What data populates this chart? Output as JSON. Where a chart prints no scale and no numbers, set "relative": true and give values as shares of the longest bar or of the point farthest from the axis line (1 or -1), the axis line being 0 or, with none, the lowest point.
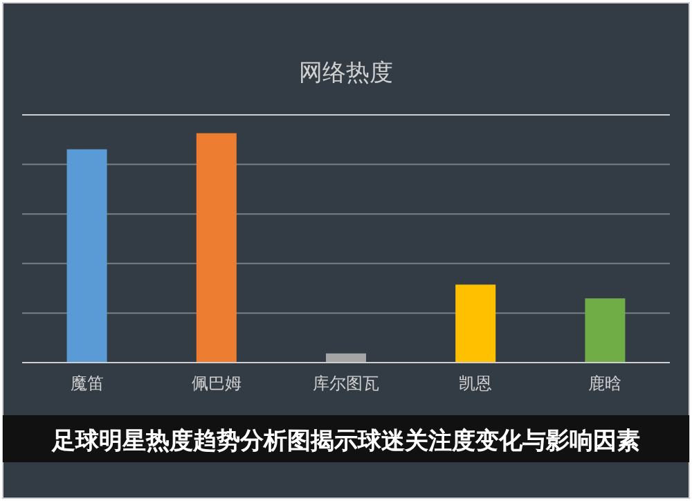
{
  "chart_data": {
    "type": "bar",
    "title": "网络热度",
    "categories": [
      "魔笛",
      "佩巴姆",
      "库尔图瓦",
      "凯恩",
      "鹿晗"
    ],
    "values": [
      0.93,
      1,
      0.04,
      0.34,
      0.28
    ],
    "colors": [
      "#5b9bd5",
      "#ed7d31",
      "#a5a5a5",
      "#ffc000",
      "#70ad47"
    ],
    "relative": true,
    "grid": true,
    "annotations": [
      "足球明星热度趋势分析图揭示球迷关注度变化与影响因素"
    ]
  }
}
